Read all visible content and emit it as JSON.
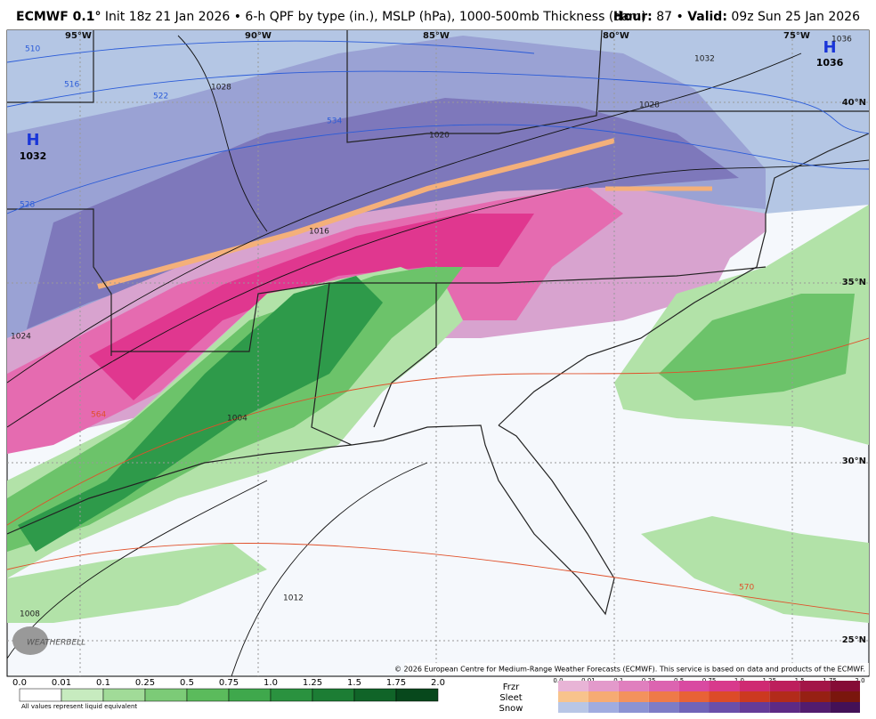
{
  "header": {
    "model": "ECMWF 0.1°",
    "description": "Init 18z 21 Jan 2026 • 6-h QPF by type (in.), MSLP (hPa), 1000-500mb Thickness (dam)",
    "hour_label": "Hour:",
    "hour": "87",
    "separator": "•",
    "valid_label": "Valid:",
    "valid": "09z Sun 25 Jan 2026"
  },
  "map": {
    "longitude_labels": [
      "95°W",
      "90°W",
      "85°W",
      "80°W",
      "75°W"
    ],
    "latitude_labels": [
      "40°N",
      "35°N",
      "30°N",
      "25°N"
    ],
    "highs": [
      {
        "symbol": "H",
        "pressure": "1032"
      },
      {
        "symbol": "H",
        "pressure": "1036"
      }
    ],
    "isobar_labels": [
      "1028",
      "1020",
      "1016",
      "1024",
      "1012",
      "1008",
      "1004",
      "1032",
      "1028",
      "1036"
    ],
    "thickness_labels": [
      "510",
      "516",
      "522",
      "528",
      "534",
      "564",
      "570"
    ],
    "copyright": "© 2026 European Centre for Medium-Range Weather Forecasts (ECMWF). This service is based on data and products of the ECMWF.",
    "logo": "WEATHERBELL"
  },
  "legend": {
    "rain": {
      "ticks": [
        "0.0",
        "0.01",
        "0.1",
        "0.25",
        "0.5",
        "0.75",
        "1.0",
        "1.25",
        "1.5",
        "1.75",
        "2.0"
      ],
      "colors": [
        "#ffffff",
        "#c7ebbf",
        "#a1db98",
        "#7ccb77",
        "#5bbb5c",
        "#3fa84c",
        "#2a923f",
        "#1c7d34",
        "#106428",
        "#07481c"
      ],
      "note": "All values represent liquid equivalent"
    },
    "types": {
      "ticks": [
        "0.0",
        "0.01",
        "0.1",
        "0.25",
        "0.5",
        "0.75",
        "1.0",
        "1.25",
        "1.5",
        "1.75",
        "2.0"
      ],
      "rows": [
        {
          "name": "Frzr",
          "colors": [
            "#e8b4d6",
            "#e39acb",
            "#e07fbe",
            "#dc64b0",
            "#d94aa1",
            "#d83a8c",
            "#cf2a72",
            "#bd1f5c",
            "#a31547",
            "#850c36"
          ]
        },
        {
          "name": "Sleet",
          "colors": [
            "#f8c38c",
            "#f6ab73",
            "#f3925d",
            "#ee7a48",
            "#e86236",
            "#dc4b28",
            "#cc3920",
            "#b22b1a",
            "#962013",
            "#7a160d"
          ]
        },
        {
          "name": "Snow",
          "colors": [
            "#b8c6e6",
            "#a0ace0",
            "#8b93d3",
            "#7d7cc6",
            "#7064b8",
            "#6a4faa",
            "#653b98",
            "#5d2a85",
            "#521c6e",
            "#431157"
          ]
        }
      ]
    }
  }
}
